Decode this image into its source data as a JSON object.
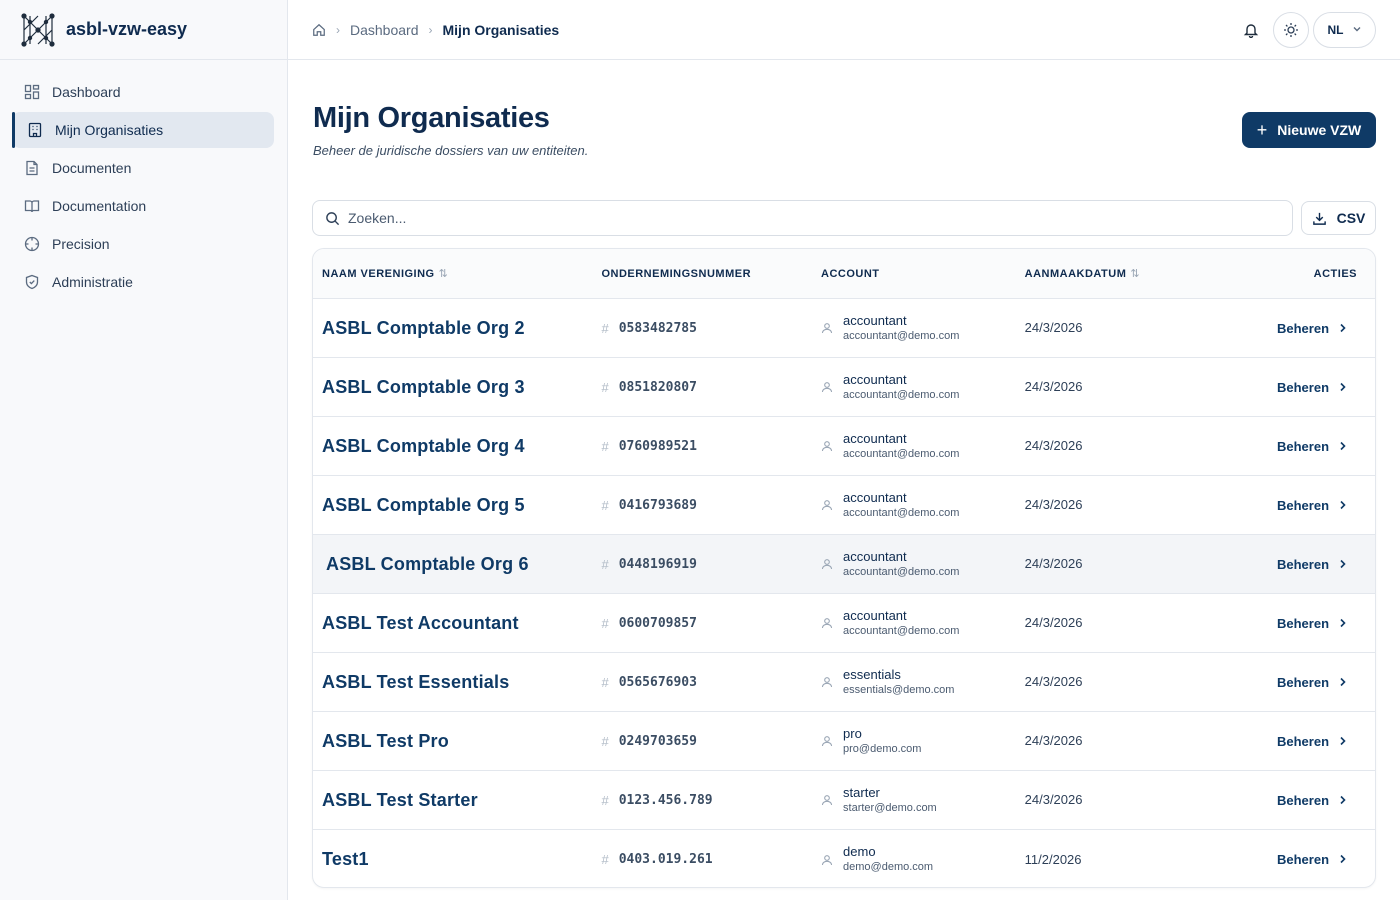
{
  "brand": {
    "name": "asbl-vzw-easy"
  },
  "sidebar": {
    "items": [
      {
        "label": "Dashboard",
        "icon": "dashboard-icon"
      },
      {
        "label": "Mijn Organisaties",
        "icon": "building-icon",
        "active": true
      },
      {
        "label": "Documenten",
        "icon": "document-icon"
      },
      {
        "label": "Documentation",
        "icon": "book-icon"
      },
      {
        "label": "Precision",
        "icon": "crosshair-icon"
      },
      {
        "label": "Administratie",
        "icon": "shield-icon"
      }
    ]
  },
  "breadcrumb": {
    "items": [
      "Dashboard",
      "Mijn Organisaties"
    ]
  },
  "header": {
    "language": "NL"
  },
  "page": {
    "title": "Mijn Organisaties",
    "subtitle": "Beheer de juridische dossiers van uw entiteiten.",
    "new_button": "Nieuwe VZW"
  },
  "search": {
    "placeholder": "Zoeken...",
    "value": ""
  },
  "export": {
    "label": "CSV"
  },
  "table": {
    "columns": {
      "name": "NAAM VERENIGING",
      "number": "ONDERNEMINGSNUMMER",
      "account": "ACCOUNT",
      "date": "AANMAAKDATUM",
      "actions": "ACTIES"
    },
    "action_label": "Beheren",
    "rows": [
      {
        "name": "ASBL Comptable Org 2",
        "number": "0583482785",
        "account": "accountant",
        "email": "accountant@demo.com",
        "date": "24/3/2026"
      },
      {
        "name": "ASBL Comptable Org 3",
        "number": "0851820807",
        "account": "accountant",
        "email": "accountant@demo.com",
        "date": "24/3/2026"
      },
      {
        "name": "ASBL Comptable Org 4",
        "number": "0760989521",
        "account": "accountant",
        "email": "accountant@demo.com",
        "date": "24/3/2026"
      },
      {
        "name": "ASBL Comptable Org 5",
        "number": "0416793689",
        "account": "accountant",
        "email": "accountant@demo.com",
        "date": "24/3/2026"
      },
      {
        "name": "ASBL Comptable Org 6",
        "number": "0448196919",
        "account": "accountant",
        "email": "accountant@demo.com",
        "date": "24/3/2026"
      },
      {
        "name": "ASBL Test Accountant",
        "number": "0600709857",
        "account": "accountant",
        "email": "accountant@demo.com",
        "date": "24/3/2026"
      },
      {
        "name": "ASBL Test Essentials",
        "number": "0565676903",
        "account": "essentials",
        "email": "essentials@demo.com",
        "date": "24/3/2026"
      },
      {
        "name": "ASBL Test Pro",
        "number": "0249703659",
        "account": "pro",
        "email": "pro@demo.com",
        "date": "24/3/2026"
      },
      {
        "name": "ASBL Test Starter",
        "number": "0123.456.789",
        "account": "starter",
        "email": "starter@demo.com",
        "date": "24/3/2026"
      },
      {
        "name": "Test1",
        "number": "0403.019.261",
        "account": "demo",
        "email": "demo@demo.com",
        "date": "11/2/2026"
      }
    ]
  },
  "colors": {
    "primary": "#0f3a66",
    "text": "#0f2b4f",
    "border": "#e3e7ed",
    "sidebar_bg": "#f8f9fb"
  }
}
